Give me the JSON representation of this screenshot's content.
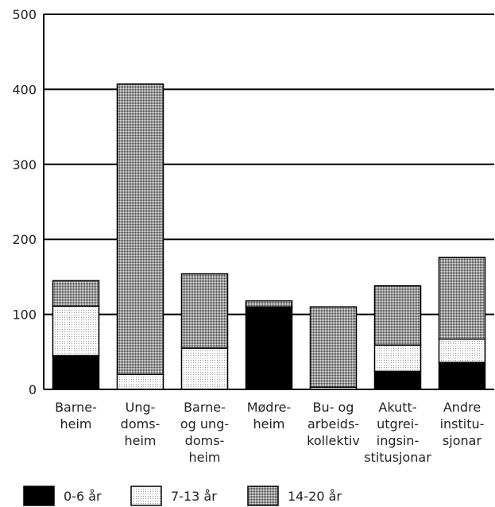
{
  "chart_data": {
    "type": "bar",
    "stacked": true,
    "categories": [
      [
        "Barne-",
        "heim"
      ],
      [
        "Ung-",
        "doms-",
        "heim"
      ],
      [
        "Barne-",
        "og ung-",
        "doms-",
        "heim"
      ],
      [
        "Mødre-",
        "heim"
      ],
      [
        "Bu- og",
        "arbeids-",
        "kollektiv"
      ],
      [
        "Akutt-",
        "utgrei-",
        "ingsin-",
        "stitusjonar"
      ],
      [
        "Andre",
        "institu-",
        "sjonar"
      ]
    ],
    "series": [
      {
        "name": "0-6 år",
        "values": [
          45,
          0,
          0,
          110,
          0,
          24,
          36
        ],
        "color": "#000000",
        "pattern": "solid"
      },
      {
        "name": "7-13 år",
        "values": [
          66,
          20,
          55,
          0,
          3,
          35,
          31
        ],
        "color": "#f2f2f2",
        "pattern": "light-dots"
      },
      {
        "name": "14-20 år",
        "values": [
          34,
          387,
          99,
          8,
          107,
          79,
          109
        ],
        "color": "#a8a8a8",
        "pattern": "dense-dots"
      }
    ],
    "yticks": [
      0,
      100,
      200,
      300,
      400,
      500
    ],
    "ylim": [
      0,
      500
    ],
    "grid": "horizontal",
    "legend_position": "bottom-left"
  }
}
